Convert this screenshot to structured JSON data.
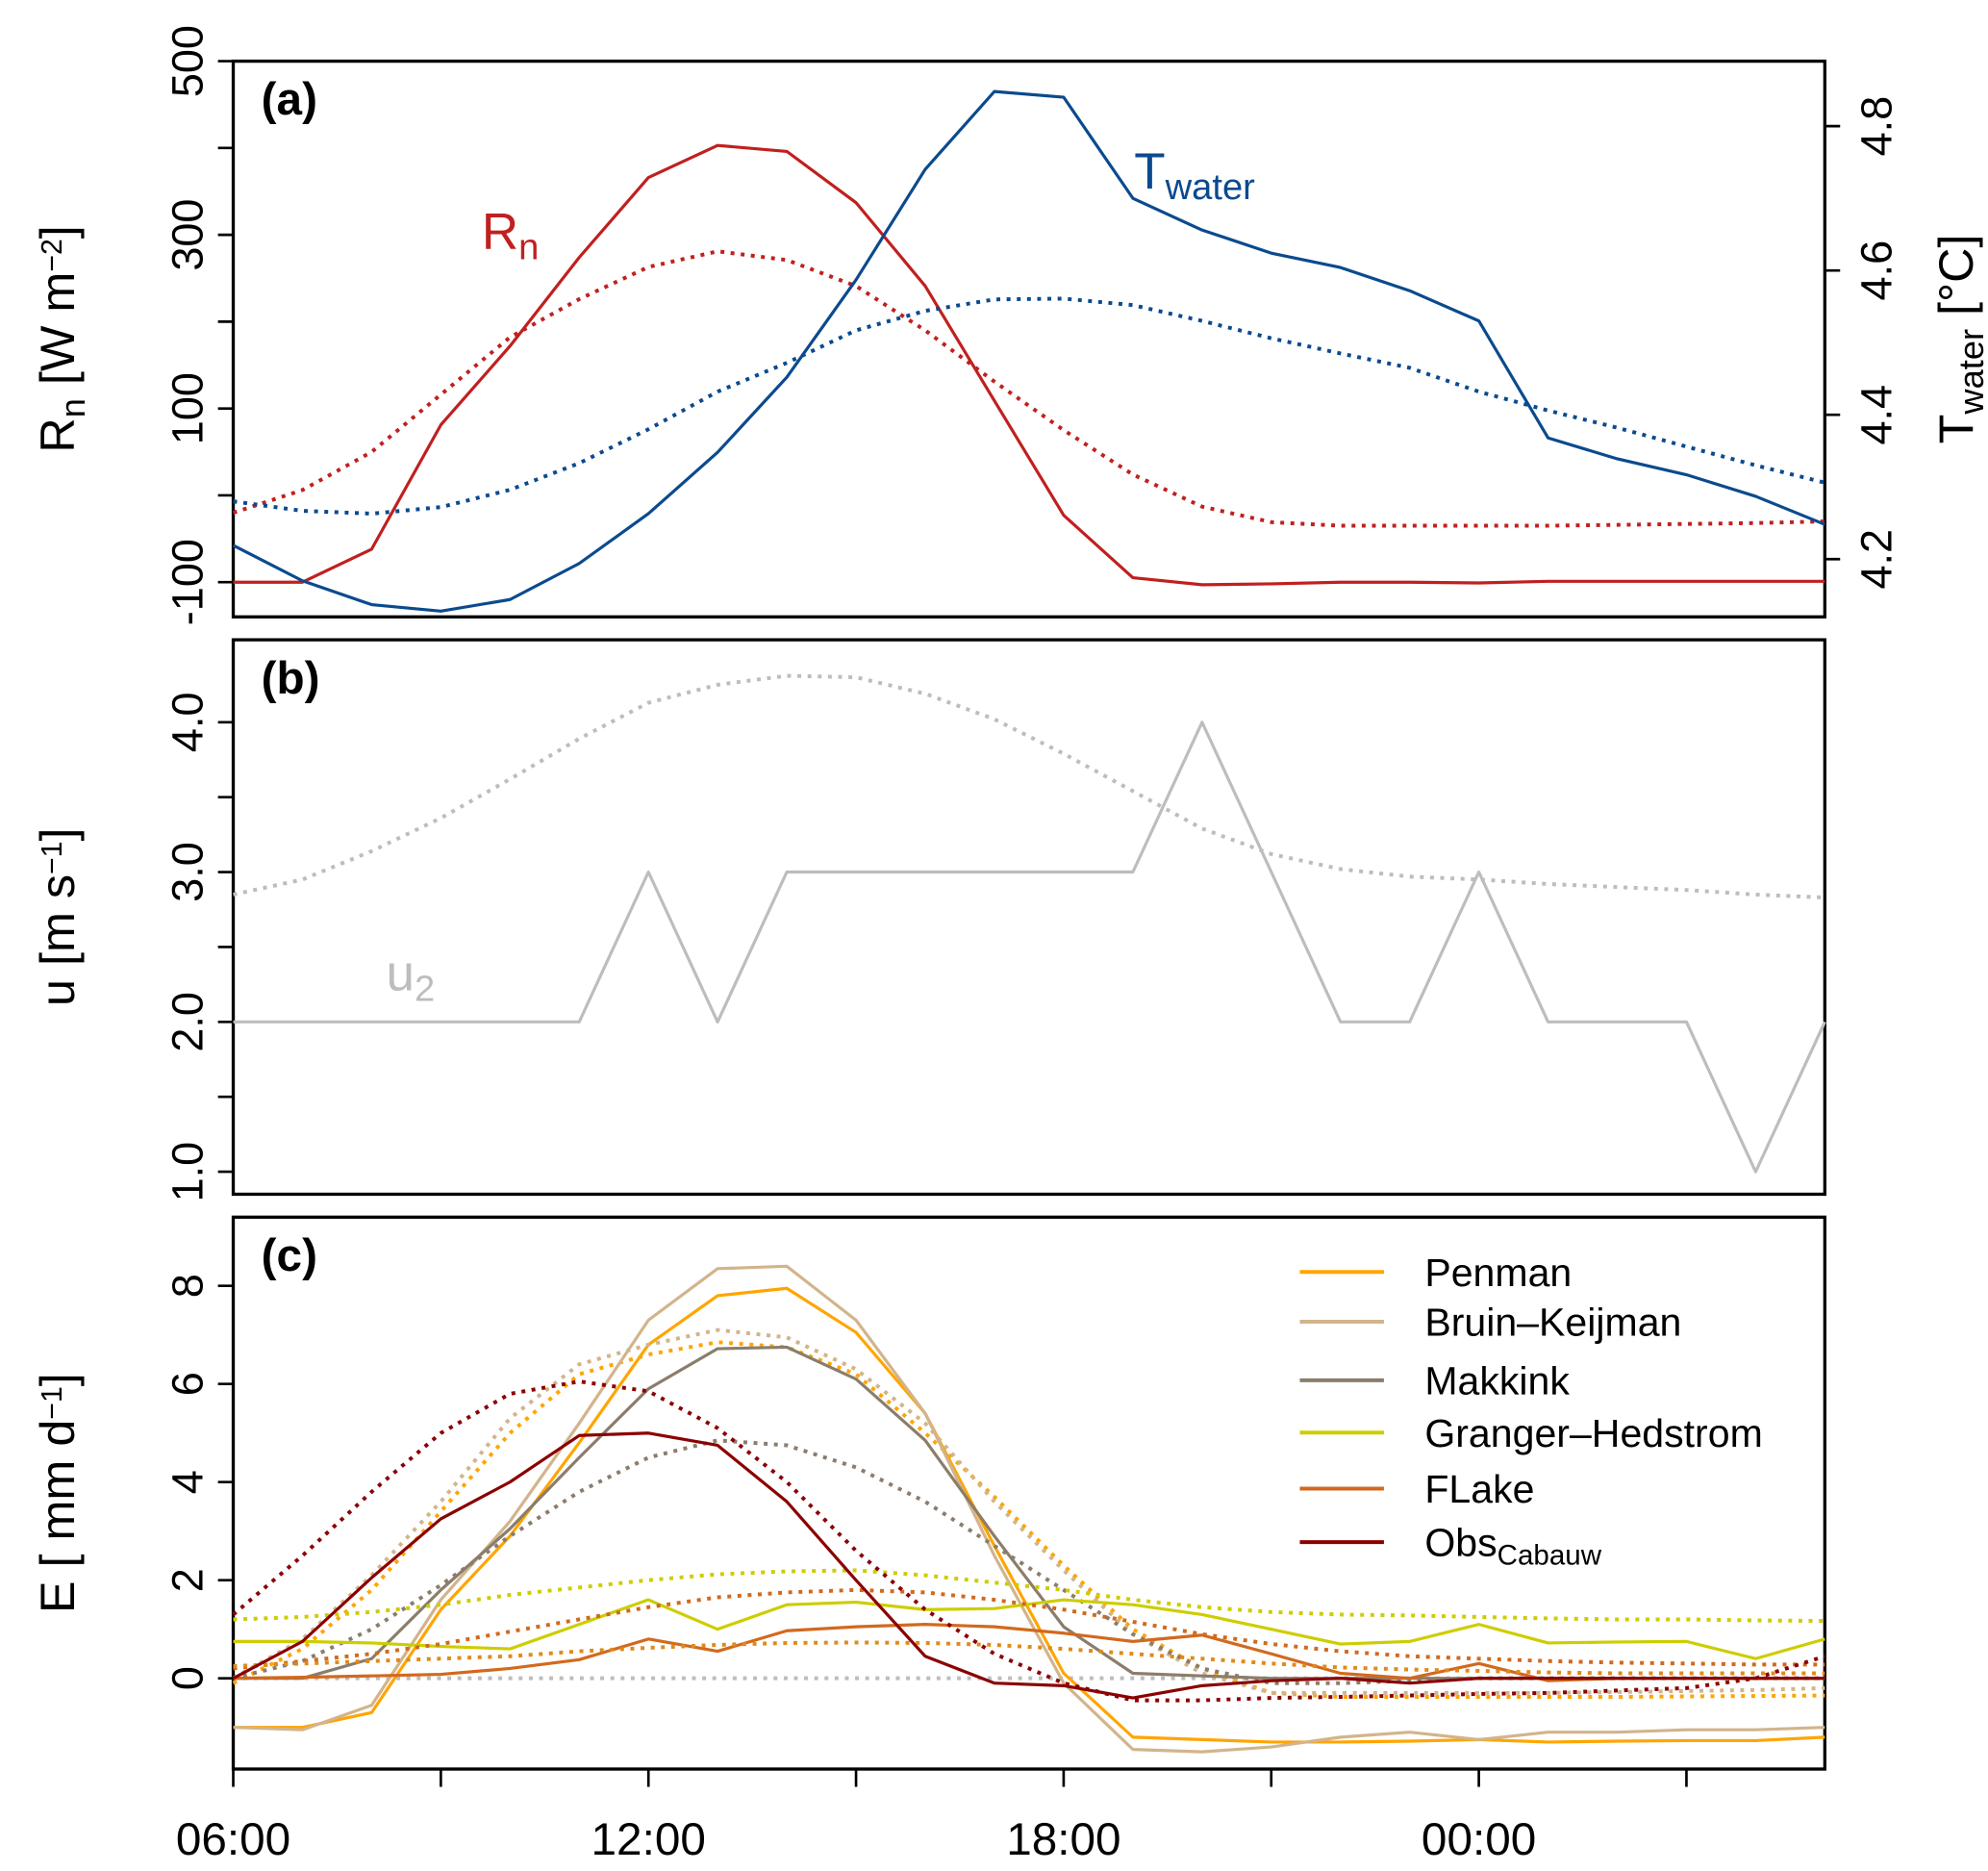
{
  "chart_data": [
    {
      "panel_label": "(a)",
      "type": "line",
      "x": [
        "06:00",
        "07:00",
        "08:00",
        "09:00",
        "10:00",
        "11:00",
        "12:00",
        "13:00",
        "14:00",
        "15:00",
        "16:00",
        "17:00",
        "18:00",
        "19:00",
        "20:00",
        "21:00",
        "22:00",
        "23:00",
        "00:00",
        "01:00",
        "02:00",
        "03:00",
        "04:00",
        "05:00"
      ],
      "xticks": [
        "06:00",
        "09:00",
        "12:00",
        "15:00",
        "18:00",
        "21:00",
        "00:00",
        "03:00"
      ],
      "xtick_labels_shown": [],
      "ylim": [
        -140,
        500
      ],
      "yticks": [
        -100,
        0,
        100,
        200,
        300,
        400,
        500
      ],
      "ytick_labels": [
        "-100",
        "",
        "100",
        "",
        "300",
        "",
        "500"
      ],
      "ylabel_parts": [
        [
          "R",
          ""
        ],
        [
          "n",
          "sub"
        ],
        [
          " [W  m",
          ""
        ],
        [
          "−2",
          "sup"
        ],
        [
          "]",
          ""
        ]
      ],
      "y2lim": [
        4.12,
        4.89
      ],
      "y2ticks": [
        4.2,
        4.4,
        4.6,
        4.8
      ],
      "y2tick_labels": [
        "4.2",
        "4.4",
        "4.6",
        "4.8"
      ],
      "y2label_parts": [
        [
          "T",
          ""
        ],
        [
          "water",
          "sub"
        ],
        [
          " [°C]",
          ""
        ]
      ],
      "annotations": [
        {
          "parts": [
            [
              "R",
              ""
            ],
            [
              "n",
              "sub"
            ]
          ],
          "color": "#c0201f"
        },
        {
          "parts": [
            [
              "T",
              ""
            ],
            [
              "water",
              "sub"
            ]
          ],
          "color": "#0b4a8e"
        }
      ],
      "series": [
        {
          "key": "Rn",
          "axis": "left",
          "style": "solid",
          "color": "#c0201f",
          "values": [
            -100,
            -100,
            -62,
            81,
            172,
            274,
            366,
            403,
            396,
            337,
            241,
            109,
            -23,
            -95,
            -103,
            -102,
            -100,
            -100,
            -101,
            -99,
            -99,
            -99,
            -99,
            -99
          ]
        },
        {
          "key": "Rn",
          "axis": "left",
          "style": "dotted",
          "color": "#c0201f",
          "values": [
            -20,
            6,
            50,
            116,
            182,
            226,
            263,
            281,
            271,
            241,
            190,
            131,
            75,
            24,
            -13,
            -31,
            -35,
            -35,
            -35,
            -35,
            -34,
            -33,
            -32,
            -30
          ]
        },
        {
          "key": "Twater",
          "axis": "right",
          "style": "solid",
          "color": "#0b4a8e",
          "values": [
            4.219,
            4.17,
            4.137,
            4.128,
            4.144,
            4.194,
            4.263,
            4.348,
            4.452,
            4.587,
            4.74,
            4.848,
            4.84,
            4.7,
            4.656,
            4.624,
            4.604,
            4.572,
            4.53,
            4.368,
            4.339,
            4.317,
            4.287,
            4.248
          ]
        },
        {
          "key": "Twater",
          "axis": "right",
          "style": "dotted",
          "color": "#0b4a8e",
          "values": [
            4.28,
            4.267,
            4.263,
            4.272,
            4.296,
            4.333,
            4.38,
            4.432,
            4.472,
            4.517,
            4.544,
            4.56,
            4.561,
            4.552,
            4.53,
            4.506,
            4.485,
            4.465,
            4.432,
            4.406,
            4.382,
            4.356,
            4.33,
            4.306
          ]
        }
      ]
    },
    {
      "panel_label": "(b)",
      "type": "line",
      "x": [
        "06:00",
        "07:00",
        "08:00",
        "09:00",
        "10:00",
        "11:00",
        "12:00",
        "13:00",
        "14:00",
        "15:00",
        "16:00",
        "17:00",
        "18:00",
        "19:00",
        "20:00",
        "21:00",
        "22:00",
        "23:00",
        "00:00",
        "01:00",
        "02:00",
        "03:00",
        "04:00",
        "05:00"
      ],
      "ylim": [
        0.85,
        4.55
      ],
      "yticks": [
        1.0,
        1.5,
        2.0,
        2.5,
        3.0,
        3.5,
        4.0
      ],
      "ytick_labels": [
        "1.0",
        "",
        "2.0",
        "",
        "3.0",
        "",
        "4.0"
      ],
      "ylabel_parts": [
        [
          "u [m  s",
          ""
        ],
        [
          "−1",
          "sup"
        ],
        [
          "]",
          ""
        ]
      ],
      "annotations": [
        {
          "parts": [
            [
              "u",
              ""
            ],
            [
              "2",
              "sub"
            ]
          ],
          "color": "#bdbdbd"
        }
      ],
      "series": [
        {
          "key": "u2",
          "style": "solid",
          "color": "#bdbdbd",
          "values": [
            2,
            2,
            2,
            2,
            2,
            2,
            3,
            2,
            3,
            3,
            3,
            3,
            3,
            3,
            4,
            3,
            2,
            2,
            3,
            2,
            2,
            2,
            1,
            2
          ]
        },
        {
          "key": "u2",
          "style": "dotted",
          "color": "#bdbdbd",
          "values": [
            2.85,
            2.95,
            3.14,
            3.36,
            3.62,
            3.89,
            4.13,
            4.25,
            4.31,
            4.3,
            4.19,
            4.02,
            3.79,
            3.54,
            3.29,
            3.12,
            3.02,
            2.97,
            2.95,
            2.92,
            2.9,
            2.88,
            2.85,
            2.83
          ]
        }
      ]
    },
    {
      "panel_label": "(c)",
      "type": "line",
      "x": [
        "06:00",
        "07:00",
        "08:00",
        "09:00",
        "10:00",
        "11:00",
        "12:00",
        "13:00",
        "14:00",
        "15:00",
        "16:00",
        "17:00",
        "18:00",
        "19:00",
        "20:00",
        "21:00",
        "22:00",
        "23:00",
        "00:00",
        "01:00",
        "02:00",
        "03:00",
        "04:00",
        "05:00"
      ],
      "xtick_labels": [
        "06:00",
        "",
        "12:00",
        "",
        "18:00",
        "",
        "00:00",
        ""
      ],
      "ylim": [
        -1.85,
        9.4
      ],
      "yticks": [
        0,
        2,
        4,
        6,
        8
      ],
      "ytick_labels": [
        "0",
        "2",
        "4",
        "6",
        "8"
      ],
      "ylabel_parts": [
        [
          "E  [ mm d",
          ""
        ],
        [
          "−1",
          "sup"
        ],
        [
          "]",
          ""
        ]
      ],
      "legend": {
        "placement": "top-right",
        "entries": [
          {
            "parts": [
              [
                "Penman",
                ""
              ]
            ],
            "color": "#ffa500"
          },
          {
            "parts": [
              [
                "Bruin–Keijman",
                ""
              ]
            ],
            "color": "#d2b48c"
          },
          {
            "parts": [
              [
                "Makkink",
                ""
              ]
            ],
            "color": "#8b7d6b"
          },
          {
            "parts": [
              [
                "Granger–Hedstrom",
                ""
              ]
            ],
            "color": "#cdcd00"
          },
          {
            "parts": [
              [
                "FLake",
                ""
              ]
            ],
            "color": "#d2691e"
          },
          {
            "parts": [
              [
                "Obs",
                ""
              ],
              [
                "Cabauw",
                "sub"
              ]
            ],
            "color": "#8b0000"
          }
        ]
      },
      "series": [
        {
          "key": "zero",
          "style": "dotted",
          "color": "#bdbdbd",
          "values": [
            0,
            0,
            0,
            0,
            0,
            0,
            0,
            0,
            0,
            0,
            0,
            0,
            0,
            0,
            0,
            0,
            0,
            0,
            0,
            0,
            0,
            0,
            0,
            0
          ]
        },
        {
          "name": "Penman",
          "style": "solid",
          "color": "#ffa500",
          "values": [
            -1.0,
            -1.0,
            -0.7,
            1.4,
            2.9,
            4.8,
            6.8,
            7.8,
            7.95,
            7.05,
            5.4,
            2.7,
            0.1,
            -1.2,
            -1.25,
            -1.3,
            -1.3,
            -1.28,
            -1.25,
            -1.3,
            -1.28,
            -1.27,
            -1.27,
            -1.2
          ]
        },
        {
          "name": "Penman",
          "style": "dotted",
          "color": "#ffa500",
          "values": [
            -0.1,
            0.6,
            1.8,
            3.4,
            5.0,
            6.2,
            6.6,
            6.85,
            6.75,
            6.2,
            5.0,
            3.7,
            2.3,
            1.0,
            0.2,
            -0.3,
            -0.38,
            -0.38,
            -0.38,
            -0.38,
            -0.38,
            -0.37,
            -0.36,
            -0.35
          ]
        },
        {
          "name": "Bruin–Keijman",
          "style": "solid",
          "color": "#d2b48c",
          "values": [
            -1.0,
            -1.05,
            -0.55,
            1.6,
            3.2,
            5.2,
            7.3,
            8.35,
            8.4,
            7.3,
            5.4,
            2.5,
            -0.1,
            -1.45,
            -1.5,
            -1.4,
            -1.2,
            -1.1,
            -1.25,
            -1.1,
            -1.1,
            -1.05,
            -1.05,
            -1.0
          ]
        },
        {
          "name": "Bruin–Keijman",
          "style": "dotted",
          "color": "#d2b48c",
          "values": [
            0.0,
            0.8,
            2.1,
            3.6,
            5.3,
            6.4,
            6.8,
            7.1,
            6.95,
            6.3,
            5.2,
            3.6,
            2.2,
            0.9,
            0.1,
            -0.3,
            -0.3,
            -0.3,
            -0.3,
            -0.3,
            -0.28,
            -0.26,
            -0.24,
            -0.2
          ]
        },
        {
          "name": "Makkink",
          "style": "solid",
          "color": "#8b7d6b",
          "values": [
            0.0,
            0.0,
            0.4,
            1.8,
            3.05,
            4.5,
            5.9,
            6.72,
            6.75,
            6.1,
            4.85,
            2.9,
            1.05,
            0.1,
            0.05,
            0,
            0,
            0,
            0,
            0,
            0,
            0,
            0,
            0
          ]
        },
        {
          "name": "Makkink",
          "style": "dotted",
          "color": "#8b7d6b",
          "values": [
            0.0,
            0.35,
            1.0,
            1.9,
            2.9,
            3.8,
            4.5,
            4.85,
            4.75,
            4.3,
            3.6,
            2.7,
            1.8,
            0.9,
            0.2,
            -0.1,
            -0.1,
            -0.05,
            0,
            0,
            0,
            0,
            0,
            0
          ]
        },
        {
          "name": "Granger–Hedstrom",
          "style": "solid",
          "color": "#cdcd00",
          "values": [
            0.75,
            0.75,
            0.72,
            0.65,
            0.6,
            1.1,
            1.6,
            1.0,
            1.5,
            1.55,
            1.4,
            1.42,
            1.6,
            1.5,
            1.3,
            1.0,
            0.7,
            0.75,
            1.1,
            0.72,
            0.74,
            0.75,
            0.4,
            0.8
          ]
        },
        {
          "name": "Granger–Hedstrom",
          "style": "dotted",
          "color": "#cdcd00",
          "values": [
            1.2,
            1.25,
            1.35,
            1.5,
            1.7,
            1.85,
            2.0,
            2.12,
            2.18,
            2.2,
            2.1,
            1.95,
            1.8,
            1.6,
            1.45,
            1.35,
            1.3,
            1.28,
            1.25,
            1.22,
            1.2,
            1.2,
            1.18,
            1.17
          ]
        },
        {
          "name": "FLake",
          "style": "solid",
          "color": "#d2691e",
          "values": [
            0.0,
            0.02,
            0.05,
            0.08,
            0.2,
            0.38,
            0.8,
            0.55,
            0.97,
            1.05,
            1.1,
            1.05,
            0.92,
            0.75,
            0.88,
            0.5,
            0.1,
            0.0,
            0.3,
            -0.05,
            0,
            0,
            0,
            0
          ]
        },
        {
          "name": "FLake",
          "style": "dotted",
          "color": "#d2691e",
          "values": [
            0.2,
            0.35,
            0.5,
            0.7,
            0.95,
            1.2,
            1.45,
            1.65,
            1.75,
            1.8,
            1.75,
            1.6,
            1.4,
            1.15,
            0.9,
            0.7,
            0.55,
            0.45,
            0.4,
            0.35,
            0.32,
            0.3,
            0.28,
            0.28
          ]
        },
        {
          "key": "orange-dotted-2",
          "style": "dotted",
          "color": "#e08a1a",
          "values": [
            0.25,
            0.3,
            0.35,
            0.4,
            0.45,
            0.55,
            0.62,
            0.68,
            0.72,
            0.73,
            0.72,
            0.68,
            0.6,
            0.5,
            0.4,
            0.3,
            0.22,
            0.18,
            0.15,
            0.12,
            0.1,
            0.1,
            0.1,
            0.1
          ]
        },
        {
          "name": "ObsCabauw",
          "style": "solid",
          "color": "#8b0000",
          "values": [
            0.0,
            0.75,
            2.05,
            3.25,
            4.0,
            4.95,
            5.0,
            4.75,
            3.6,
            2.0,
            0.45,
            -0.1,
            -0.15,
            -0.4,
            -0.15,
            -0.05,
            0.0,
            -0.1,
            0,
            0,
            0,
            0,
            0,
            0
          ]
        },
        {
          "name": "ObsCabauw",
          "style": "dotted",
          "color": "#8b0000",
          "values": [
            1.3,
            2.5,
            3.8,
            5.0,
            5.8,
            6.05,
            5.85,
            5.1,
            4.0,
            2.6,
            1.4,
            0.5,
            -0.1,
            -0.45,
            -0.45,
            -0.4,
            -0.38,
            -0.35,
            -0.32,
            -0.3,
            -0.25,
            -0.2,
            0.0,
            0.45
          ]
        }
      ]
    }
  ]
}
